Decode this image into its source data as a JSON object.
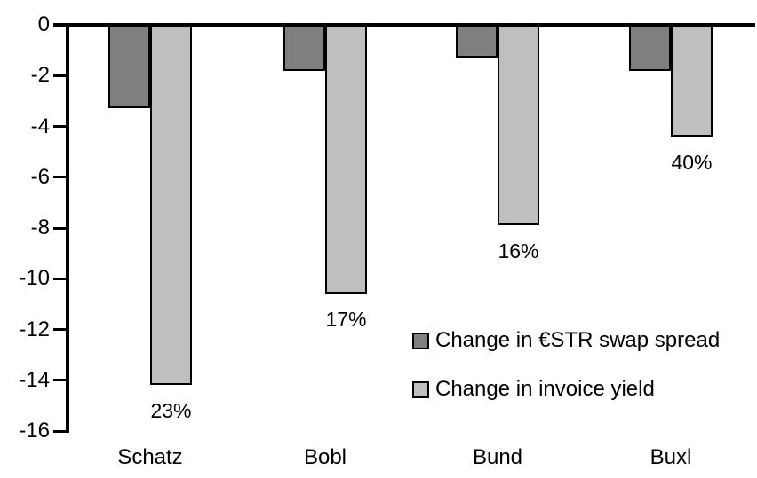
{
  "chart_data": {
    "type": "bar",
    "title": "",
    "xlabel": "",
    "ylabel": "",
    "categories": [
      "Schatz",
      "Bobl",
      "Bund",
      "Buxl"
    ],
    "series": [
      {
        "name": "Change in €STR swap spread",
        "color": "#7f7f7f",
        "values": [
          -3.3,
          -1.8,
          -1.3,
          -1.8
        ]
      },
      {
        "name": "Change in invoice yield",
        "color": "#bfbfbf",
        "values": [
          -14.2,
          -10.6,
          -7.9,
          -4.4
        ],
        "data_labels": [
          "23%",
          "17%",
          "16%",
          "40%"
        ]
      }
    ],
    "ylim": [
      -16,
      0
    ],
    "yticks": [
      0,
      -2,
      -4,
      -6,
      -8,
      -10,
      -12,
      -14,
      -16
    ],
    "grid": false,
    "legend_position": "inside-center-right",
    "bar_outline_color": "#000000",
    "background_color": "#ffffff"
  }
}
